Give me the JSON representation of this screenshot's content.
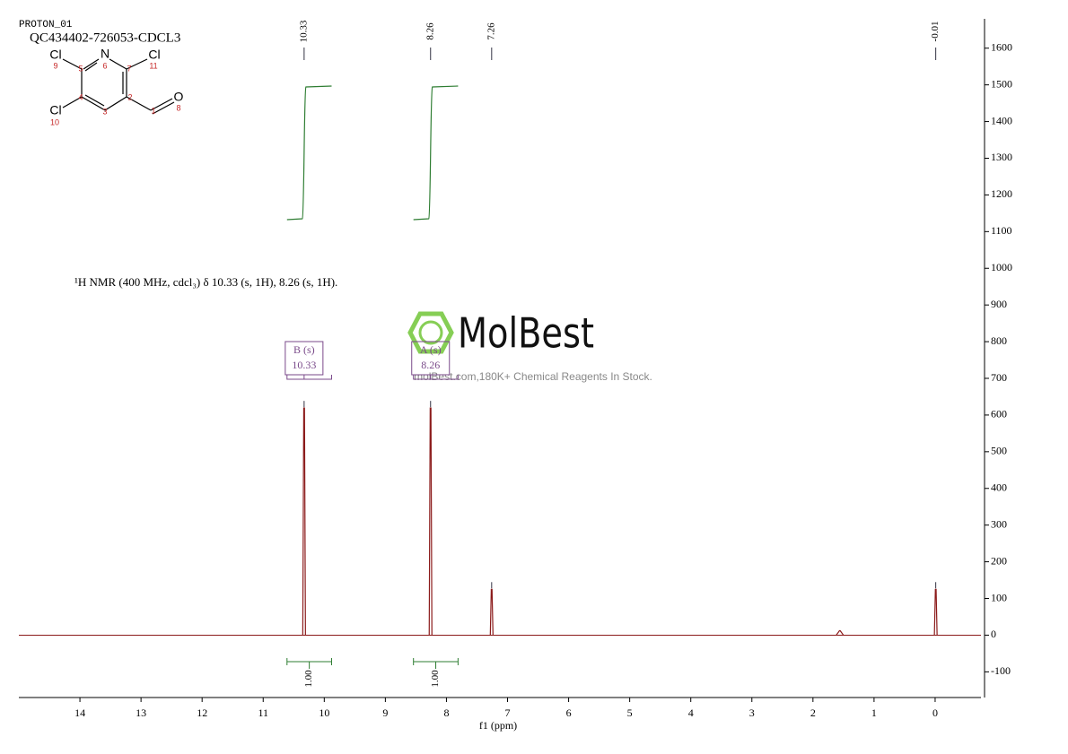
{
  "header": {
    "line1": "PROTON_01",
    "line2": "QC434402-726053-CDCL3"
  },
  "molecule": {
    "atoms": [
      {
        "label": "Cl",
        "number": "9"
      },
      {
        "label": "N",
        "number": "6"
      },
      {
        "label": "Cl",
        "number": "11"
      },
      {
        "label": "Cl",
        "number": "10"
      },
      {
        "label": "O",
        "number": "8"
      }
    ],
    "carbons": [
      "5",
      "7",
      "4",
      "2",
      "3",
      "1"
    ]
  },
  "watermark": {
    "brand": "MolBest",
    "tagline": "molBest.com,180K+ Chemical Reagents In Stock."
  },
  "chart_data": {
    "type": "nmr",
    "description": "¹H NMR (400 MHz, cdcl₃) δ 10.33 (s, 1H), 8.26 (s, 1H).",
    "x_label": "f1 (ppm)",
    "xlim": [
      15,
      -0.75
    ],
    "xticks": [
      14,
      13,
      12,
      11,
      10,
      9,
      8,
      7,
      6,
      5,
      4,
      3,
      2,
      1,
      0
    ],
    "ylim": [
      -170,
      1680
    ],
    "yticks": [
      -100,
      0,
      100,
      200,
      300,
      400,
      500,
      600,
      700,
      800,
      900,
      1000,
      1100,
      1200,
      1300,
      1400,
      1500,
      1600
    ],
    "color": "#8b1a1a",
    "peaks": {
      "x": [
        10.33,
        8.26,
        7.26,
        1.56,
        -0.01
      ],
      "values": [
        619,
        619,
        125,
        12,
        125
      ]
    },
    "peak_labels": [
      10.33,
      8.26,
      7.26,
      -0.01
    ],
    "multiplets": [
      {
        "name": "B (s)",
        "shift": 10.33,
        "range": [
          10.61,
          9.88
        ]
      },
      {
        "name": "A (s)",
        "shift": 8.26,
        "range": [
          8.54,
          7.81
        ]
      }
    ],
    "integrals": {
      "ranges": [
        [
          10.61,
          9.88
        ],
        [
          8.54,
          7.81
        ]
      ],
      "values": [
        1,
        1
      ],
      "value_labels": [
        "1.00",
        "1.00"
      ],
      "color": "#2e7d32"
    }
  }
}
